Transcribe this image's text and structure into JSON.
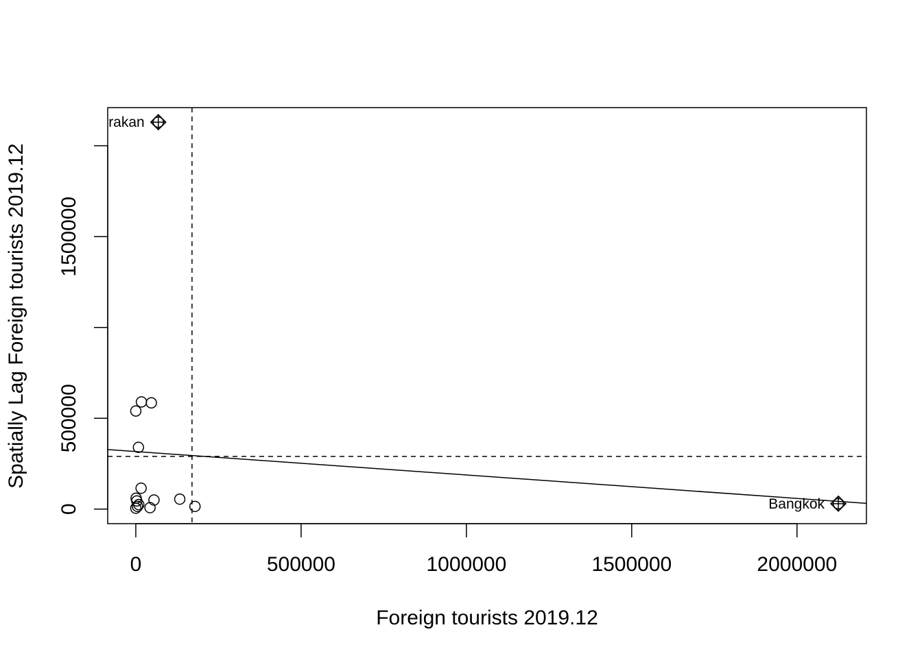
{
  "chart_data": {
    "type": "scatter",
    "xlabel": "Foreign tourists 2019.12",
    "ylabel": "Spatially Lag Foreign tourists 2019.12",
    "xlim": [
      -85000,
      2210000
    ],
    "ylim": [
      -80000,
      2210000
    ],
    "x_ticks": [
      0,
      500000,
      1000000,
      1500000,
      2000000
    ],
    "x_tick_labels": [
      "0",
      "500000",
      "1000000",
      "1500000",
      "2000000"
    ],
    "y_ticks": [
      0,
      500000,
      1000000,
      1500000,
      2000000
    ],
    "y_tick_labels": [
      "0",
      "500000",
      "",
      "1500000",
      ""
    ],
    "mean_x": 170000,
    "mean_y": 290000,
    "regression_line": {
      "intercept": 317000,
      "slope": -0.129
    },
    "points": [
      {
        "x": 0,
        "y": 540000
      },
      {
        "x": 17000,
        "y": 590000
      },
      {
        "x": 47000,
        "y": 585000
      },
      {
        "x": 8000,
        "y": 340000
      },
      {
        "x": 16000,
        "y": 115000
      },
      {
        "x": 1000,
        "y": 60000
      },
      {
        "x": 3000,
        "y": 45000
      },
      {
        "x": 9000,
        "y": 25000
      },
      {
        "x": 5000,
        "y": 15000
      },
      {
        "x": 0,
        "y": 5000
      },
      {
        "x": 43000,
        "y": 8000
      },
      {
        "x": 55000,
        "y": 50000
      },
      {
        "x": 133000,
        "y": 55000
      },
      {
        "x": 179000,
        "y": 15000
      }
    ],
    "influential_points": [
      {
        "x": 68000,
        "y": 2130000,
        "label": "rakan",
        "label_side": "left"
      },
      {
        "x": 2125000,
        "y": 30000,
        "label": "Bangkok",
        "label_side": "left"
      }
    ]
  }
}
